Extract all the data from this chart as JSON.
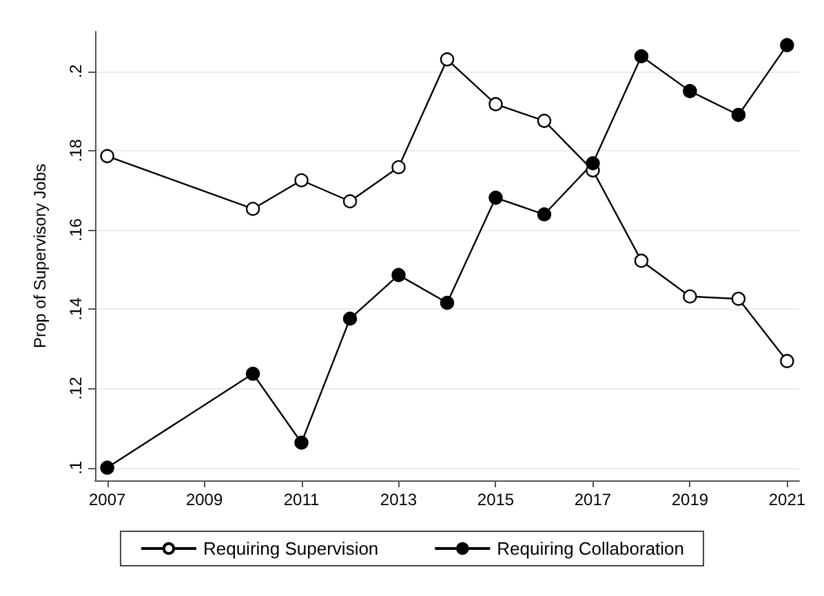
{
  "chart_data": {
    "type": "line",
    "ylabel": "Prop of Supervisory Jobs",
    "x": [
      2007,
      2010,
      2011,
      2012,
      2013,
      2014,
      2015,
      2016,
      2017,
      2018,
      2019,
      2020,
      2021
    ],
    "series": [
      {
        "name": "Requiring Supervision",
        "color": "#000000",
        "marker": "hollow circle",
        "values": [
          0.1786,
          0.1653,
          0.1725,
          0.1672,
          0.1758,
          0.203,
          0.1917,
          0.1875,
          0.175,
          0.1522,
          0.1432,
          0.1426,
          0.1269
        ]
      },
      {
        "name": "Requiring Collaboration",
        "color": "#000000",
        "values": [
          0.1,
          0.1237,
          0.1063,
          0.1376,
          0.1486,
          0.1416,
          0.1681,
          0.1639,
          0.1768,
          0.2038,
          0.195,
          0.189,
          0.2066
        ]
      }
    ],
    "xlim": [
      2006.75,
      2021.25
    ],
    "xticks": [
      2007,
      2009,
      2011,
      2013,
      2015,
      2017,
      2019,
      2021
    ],
    "ylim": [
      0.0968,
      0.21
    ],
    "yticks": [
      {
        "value": 0.1,
        "label": ".1"
      },
      {
        "value": 0.12,
        "label": ".12"
      },
      {
        "value": 0.14,
        "label": ".14"
      },
      {
        "value": 0.16,
        "label": ".16"
      },
      {
        "value": 0.18,
        "label": ".18"
      },
      {
        "value": 0.2,
        "label": ".2"
      }
    ],
    "grid": "y",
    "legend": "bottom",
    "marker": "circle",
    "line_style": "solid"
  }
}
